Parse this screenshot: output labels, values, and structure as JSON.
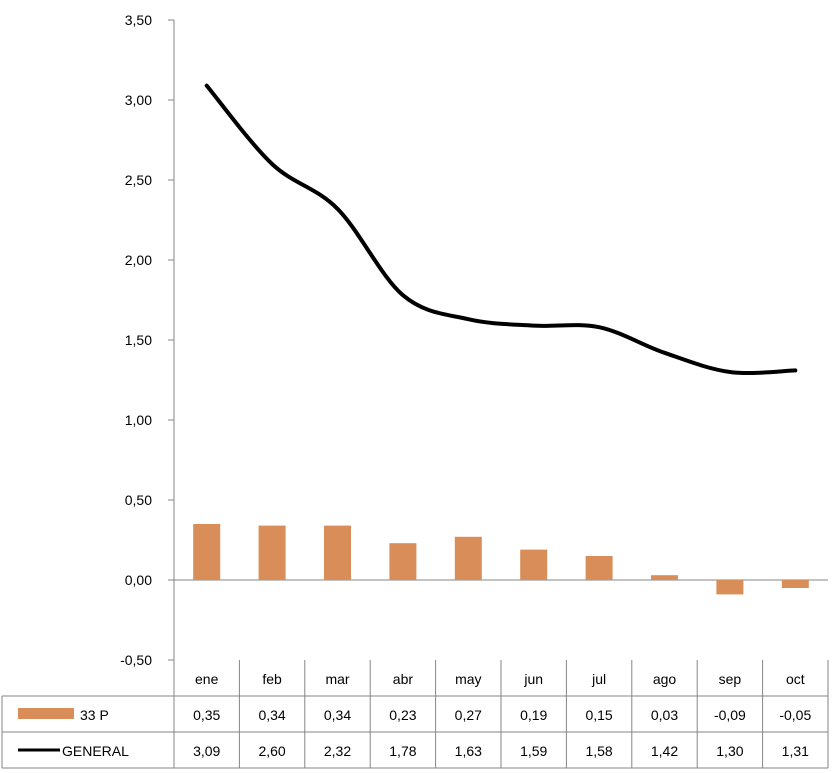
{
  "chart_data": {
    "type": "bar",
    "categories": [
      "ene",
      "feb",
      "mar",
      "abr",
      "may",
      "jun",
      "jul",
      "ago",
      "sep",
      "oct"
    ],
    "ylim": [
      -0.5,
      3.5
    ],
    "yticks": [
      "-0,50",
      "0,00",
      "0,50",
      "1,00",
      "1,50",
      "2,00",
      "2,50",
      "3,00",
      "3,50"
    ],
    "ytick_values": [
      -0.5,
      0,
      0.5,
      1.0,
      1.5,
      2.0,
      2.5,
      3.0,
      3.5
    ],
    "grid": false,
    "legend": "data-table",
    "series": [
      {
        "name": "33 P",
        "type": "bar",
        "color": "#d98e5a",
        "values": [
          0.35,
          0.34,
          0.34,
          0.23,
          0.27,
          0.19,
          0.15,
          0.03,
          -0.09,
          -0.05
        ],
        "labels": [
          "0,35",
          "0,34",
          "0,34",
          "0,23",
          "0,27",
          "0,19",
          "0,15",
          "0,03",
          "-0,09",
          "-0,05"
        ]
      },
      {
        "name": "GENERAL",
        "type": "line",
        "color": "#000000",
        "values": [
          3.09,
          2.6,
          2.32,
          1.78,
          1.63,
          1.59,
          1.58,
          1.42,
          1.3,
          1.31
        ],
        "labels": [
          "3,09",
          "2,60",
          "2,32",
          "1,78",
          "1,63",
          "1,59",
          "1,58",
          "1,42",
          "1,30",
          "1,31"
        ]
      }
    ]
  }
}
